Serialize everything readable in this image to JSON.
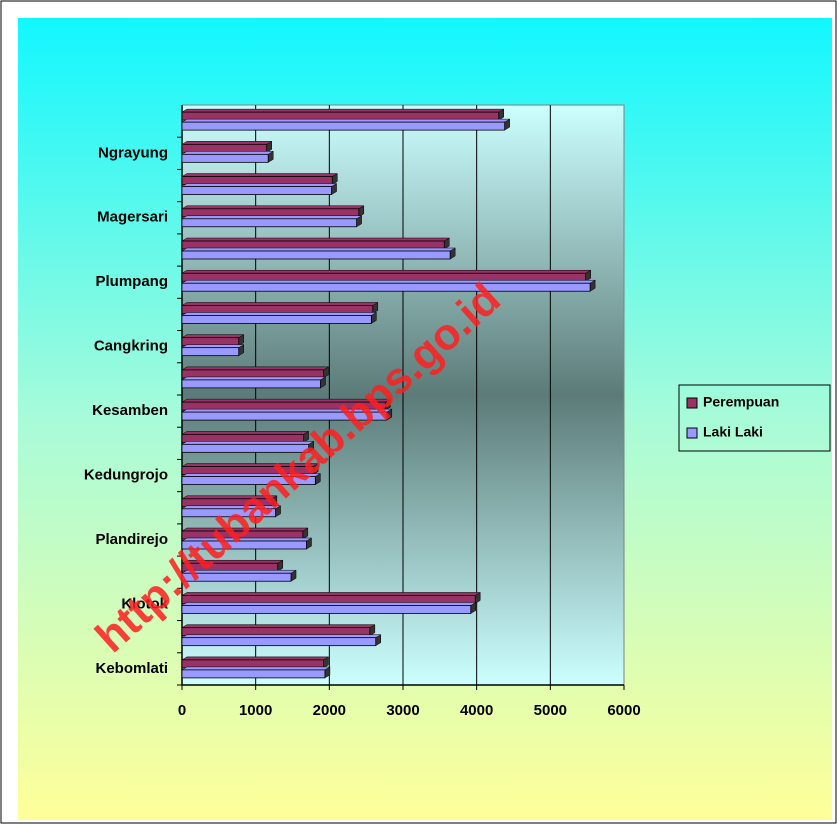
{
  "chart_data": {
    "type": "bar",
    "orientation": "horizontal",
    "categories": [
      "Kebomlati",
      null,
      "Klotok",
      null,
      "Plandirejo",
      null,
      "Kedungrojo",
      null,
      "Kesamben",
      null,
      "Cangkring",
      null,
      "Plumpang",
      null,
      "Magersari",
      null,
      "Ngrayung",
      null
    ],
    "series": [
      {
        "name": "Perempuan",
        "color": "#993366",
        "values": [
          1920,
          2550,
          3980,
          1300,
          1640,
          1220,
          1780,
          1650,
          2760,
          1920,
          770,
          2590,
          5480,
          3560,
          2400,
          2040,
          1150,
          4300
        ]
      },
      {
        "name": "Laki Laki",
        "color": "#9999ff",
        "values": [
          1940,
          2630,
          3920,
          1480,
          1690,
          1270,
          1810,
          1720,
          2780,
          1880,
          770,
          2570,
          5540,
          3640,
          2370,
          2030,
          1170,
          4380
        ]
      }
    ],
    "xlim": [
      0,
      6000
    ],
    "xticks": [
      0,
      1000,
      2000,
      3000,
      4000,
      5000,
      6000
    ],
    "grid": true,
    "legend": "right",
    "watermark": "http://tubankab.bps.go.id"
  }
}
